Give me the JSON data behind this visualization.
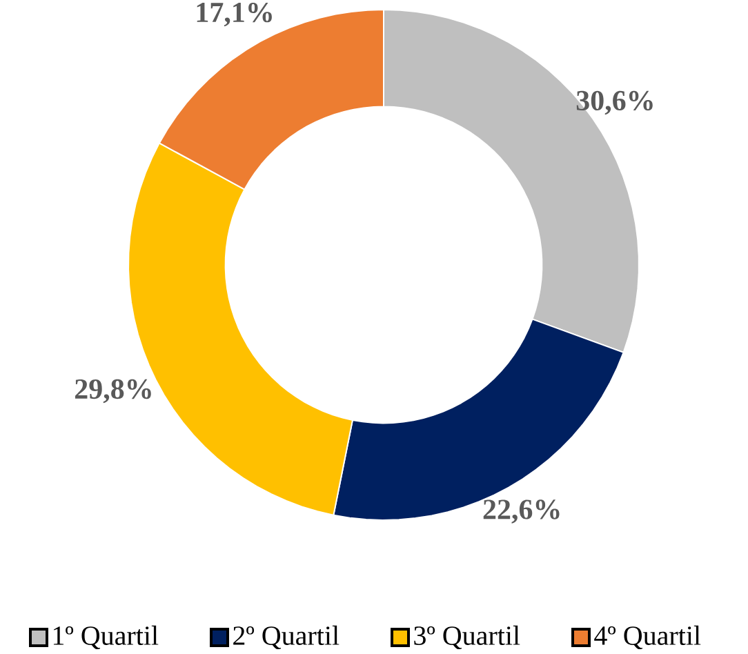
{
  "chart_data": {
    "type": "donut",
    "categories": [
      "1º Quartil",
      "2º Quartil",
      "3º Quartil",
      "4º Quartil"
    ],
    "values": [
      30.6,
      22.6,
      29.8,
      17.1
    ],
    "value_labels": [
      "30,6%",
      "22,6%",
      "29,8%",
      "17,1%"
    ],
    "colors": [
      "#bfbfbf",
      "#002060",
      "#ffc000",
      "#ed7d31"
    ],
    "legend": "bottom"
  }
}
